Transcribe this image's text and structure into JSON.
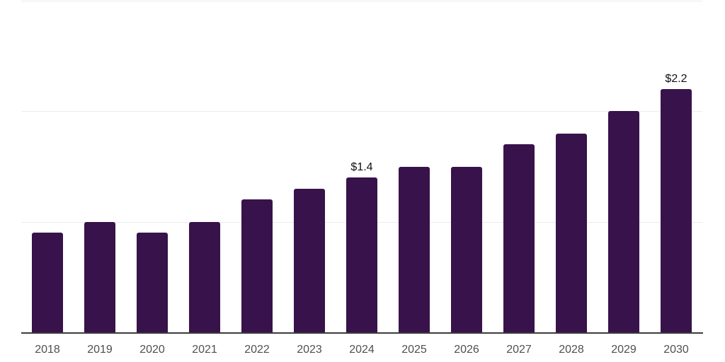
{
  "chart_data": {
    "type": "bar",
    "title": "",
    "xlabel": "",
    "ylabel": "",
    "categories": [
      "2018",
      "2019",
      "2020",
      "2021",
      "2022",
      "2023",
      "2024",
      "2025",
      "2026",
      "2027",
      "2028",
      "2029",
      "2030"
    ],
    "values": [
      0.9,
      1.0,
      0.9,
      1.0,
      1.2,
      1.3,
      1.4,
      1.5,
      1.5,
      1.7,
      1.8,
      2.0,
      2.2
    ],
    "value_unit": "USD billions (implied by $ labels)",
    "value_labels": [
      {
        "category": "2024",
        "text": "$1.4"
      },
      {
        "category": "2030",
        "text": "$2.2"
      }
    ],
    "ylim": [
      0,
      3
    ],
    "grid_values": [
      1,
      2,
      3
    ],
    "grid": true,
    "legend": false,
    "colors": {
      "bar": "#38124a",
      "grid_line": "#ececec",
      "axis_line": "#3c3c3c",
      "tick_label": "#4f4f4f",
      "value_label": "#111111",
      "background": "#ffffff"
    }
  }
}
